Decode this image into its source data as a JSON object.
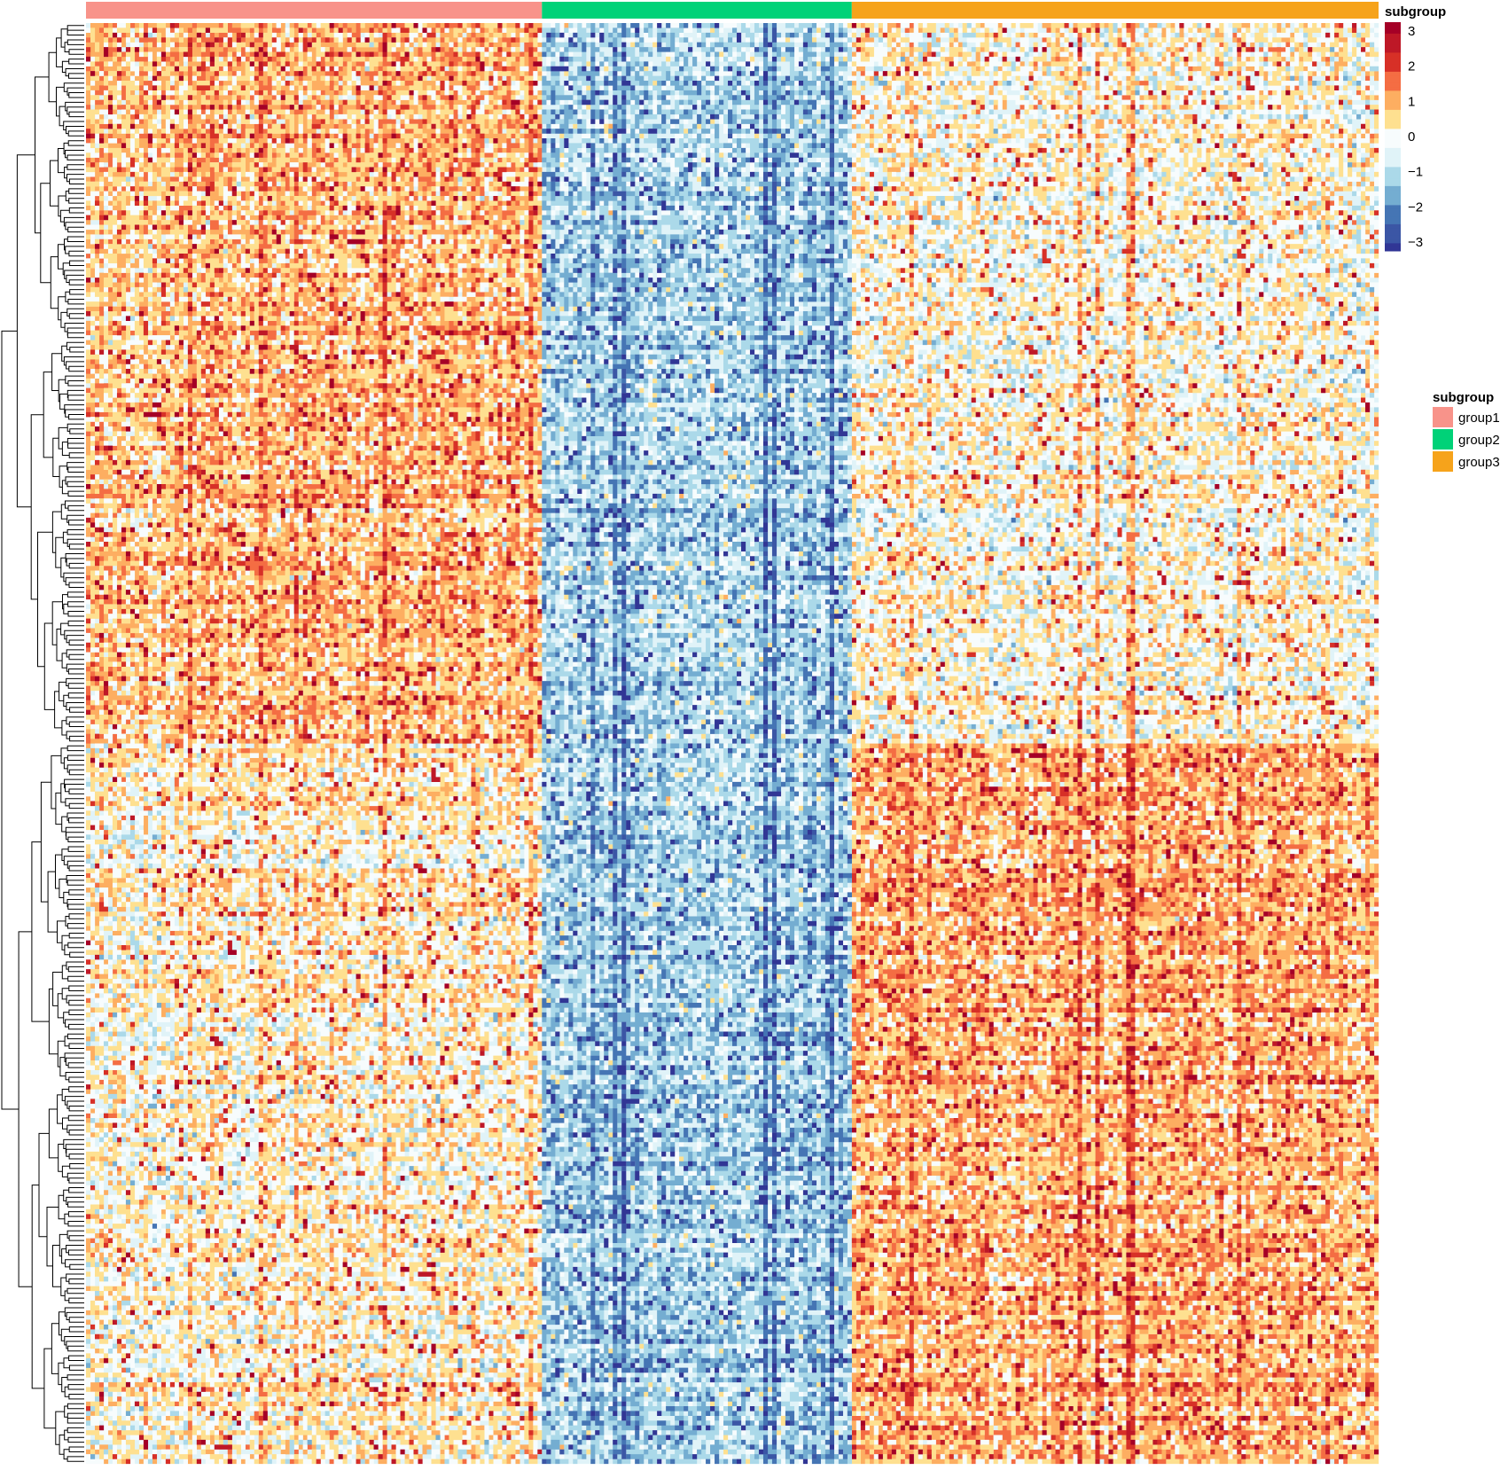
{
  "chart_data": {
    "type": "heatmap",
    "title": "",
    "xlabel": "",
    "ylabel": "",
    "column_annotation": {
      "title": "subgroup",
      "groups": [
        {
          "name": "group1",
          "color": "#F8938A",
          "columns": 103
        },
        {
          "name": "group2",
          "color": "#00D278",
          "columns": 70
        },
        {
          "name": "group3",
          "color": "#F6A31B",
          "columns": 119
        }
      ]
    },
    "color_scale": {
      "title": "subgroup",
      "min": -3,
      "max": 3,
      "ticks": [
        "3",
        "2",
        "1",
        "0",
        "−1",
        "−2",
        "−3"
      ],
      "stops": [
        {
          "value": 3,
          "color": "#A50026"
        },
        {
          "value": 2,
          "color": "#D73027"
        },
        {
          "value": 1.5,
          "color": "#F46D43"
        },
        {
          "value": 1,
          "color": "#FDAE61"
        },
        {
          "value": 0.5,
          "color": "#FEE090"
        },
        {
          "value": 0,
          "color": "#F7FCFD"
        },
        {
          "value": -0.5,
          "color": "#E0F3F8"
        },
        {
          "value": -1,
          "color": "#ABD9E9"
        },
        {
          "value": -1.5,
          "color": "#74ADD1"
        },
        {
          "value": -2,
          "color": "#4575B4"
        },
        {
          "value": -3,
          "color": "#313695"
        }
      ]
    },
    "n_rows": 300,
    "n_columns": 292,
    "row_blocks": [
      {
        "rows": 150,
        "mean": {
          "group1": 0.8,
          "group2": -0.9,
          "group3": 0.1
        }
      },
      {
        "rows": 150,
        "mean": {
          "group1": 0.2,
          "group2": -1.0,
          "group3": 0.9
        }
      }
    ],
    "dendrogram": "row clustering tree on the left",
    "legend": {
      "title": "subgroup",
      "entries": [
        "group1",
        "group2",
        "group3"
      ],
      "placement": "right"
    }
  }
}
